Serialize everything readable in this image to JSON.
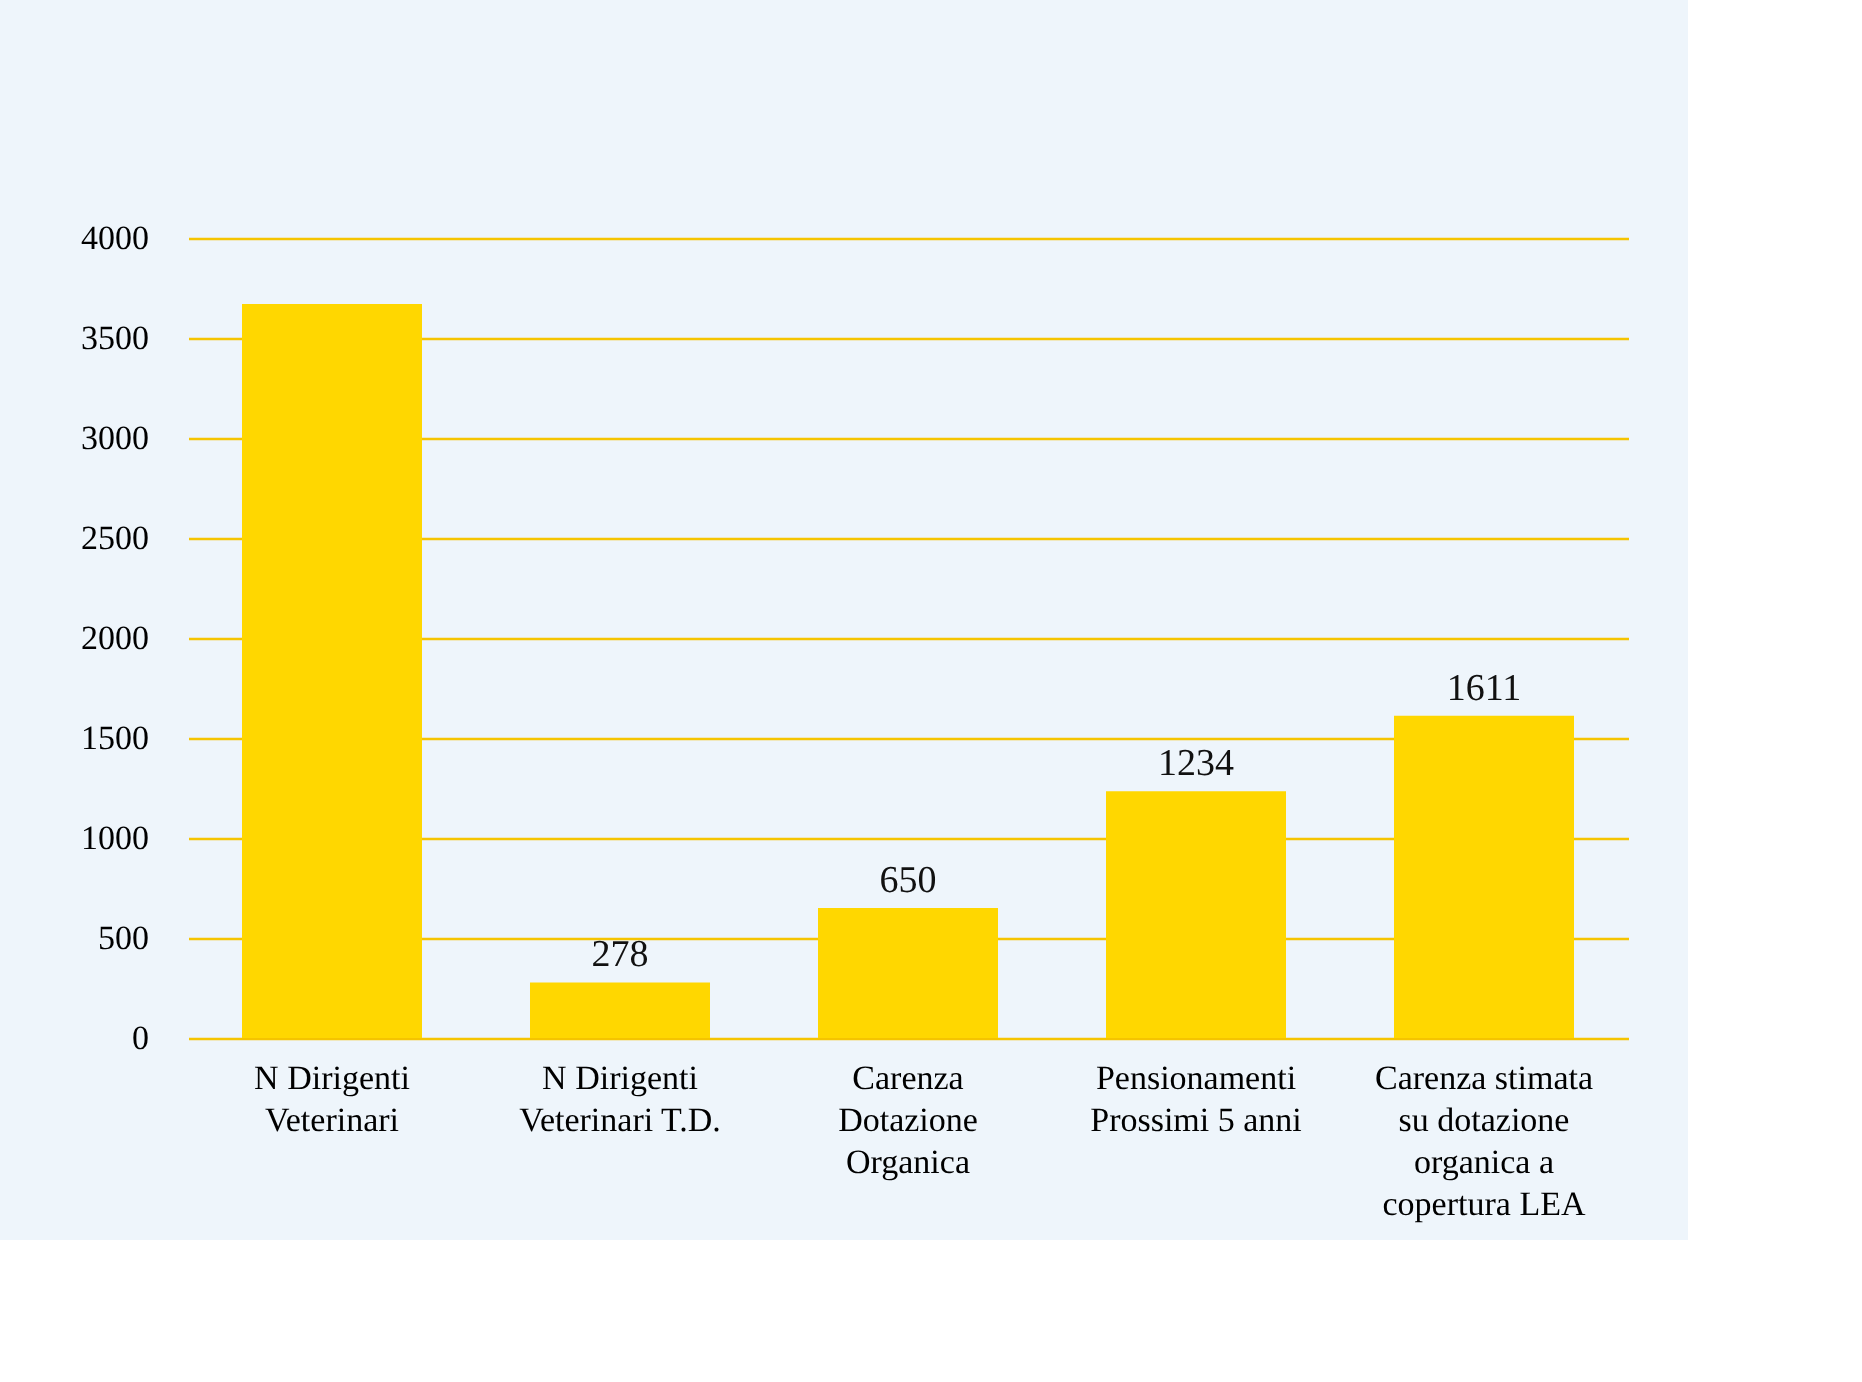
{
  "chart_data": {
    "type": "bar",
    "categories": [
      "N Dirigenti Veterinari",
      "N Dirigenti Veterinari T.D.",
      "Carenza Dotazione Organica",
      "Pensionamenti Prossimi 5 anni",
      "Carenza stimata su dotazione organica a copertura LEA"
    ],
    "values": [
      3670,
      278,
      650,
      1234,
      1611
    ],
    "value_labels": [
      null,
      "278",
      "650",
      "1234",
      "1611"
    ],
    "color": "#ffd700",
    "ylim": [
      0,
      4000
    ],
    "yticks": [
      0,
      500,
      1000,
      1500,
      2000,
      2500,
      3000,
      3500,
      4000
    ],
    "grid": "y"
  }
}
